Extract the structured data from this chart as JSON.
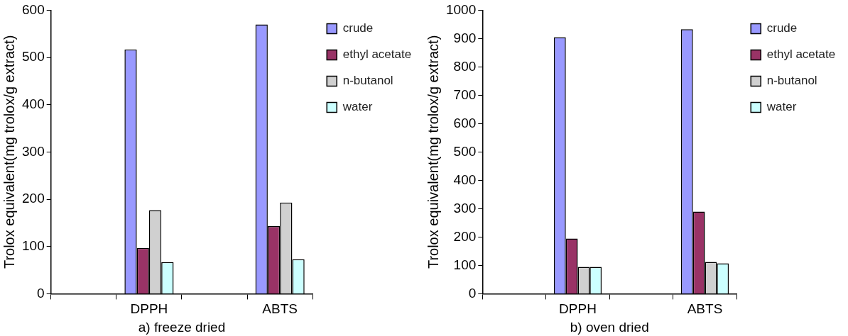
{
  "chart_data": [
    {
      "type": "bar",
      "xlabel": "a) freeze dried",
      "ylabel": "Trolox equivalent(mg trolox/g extract)",
      "categories": [
        null,
        "DPPH",
        null,
        "ABTS"
      ],
      "series": [
        {
          "name": "crude",
          "color": "#9999ff",
          "values": [
            null,
            517,
            null,
            570
          ]
        },
        {
          "name": "ethyl acetate",
          "color": "#993366",
          "values": [
            null,
            97,
            null,
            143
          ]
        },
        {
          "name": "n-butanol",
          "color": "#d0d0d0",
          "values": [
            null,
            177,
            null,
            193
          ]
        },
        {
          "name": "water",
          "color": "#ccffff",
          "values": [
            null,
            67,
            null,
            73
          ]
        }
      ],
      "ylim": [
        0,
        600
      ],
      "yticks": [
        0,
        100,
        200,
        300,
        400,
        500,
        600
      ],
      "grid": false,
      "legend": "top right"
    },
    {
      "type": "bar",
      "xlabel": "b) oven dried",
      "ylabel": "Trolox equivalent(mg trolox/g extract)",
      "categories": [
        null,
        "DPPH",
        null,
        "ABTS"
      ],
      "series": [
        {
          "name": "crude",
          "color": "#9999ff",
          "values": [
            null,
            905,
            null,
            933
          ]
        },
        {
          "name": "ethyl acetate",
          "color": "#993366",
          "values": [
            null,
            195,
            null,
            290
          ]
        },
        {
          "name": "n-butanol",
          "color": "#d0d0d0",
          "values": [
            null,
            95,
            null,
            112
          ]
        },
        {
          "name": "water",
          "color": "#ccffff",
          "values": [
            null,
            95,
            null,
            107
          ]
        }
      ],
      "ylim": [
        0,
        1000
      ],
      "yticks": [
        0,
        100,
        200,
        300,
        400,
        500,
        600,
        700,
        800,
        900,
        1000
      ],
      "grid": false,
      "legend": "top right"
    }
  ]
}
